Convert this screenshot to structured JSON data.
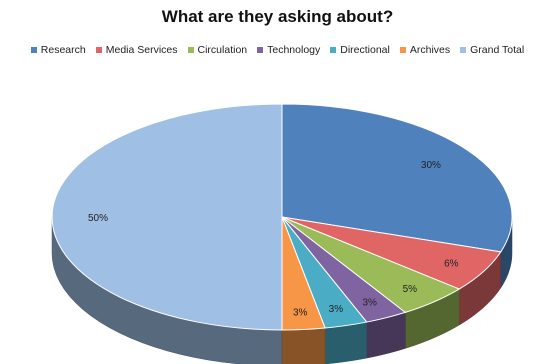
{
  "chart_data": {
    "type": "pie",
    "title": "What are they asking about?",
    "categories": [
      "Research",
      "Media Services",
      "Circulation",
      "Technology",
      "Directional",
      "Archives",
      "Grand Total"
    ],
    "values": [
      30,
      6,
      5,
      3,
      3,
      3,
      50
    ],
    "labels": [
      "30%",
      "6%",
      "5%",
      "3%",
      "3%",
      "3%",
      "50%"
    ],
    "colors": [
      "#4f81bd",
      "#e06666",
      "#9bbb59",
      "#8064a2",
      "#4bacc6",
      "#f79646",
      "#9fbfe4"
    ],
    "legend": "top",
    "style": "3d"
  }
}
